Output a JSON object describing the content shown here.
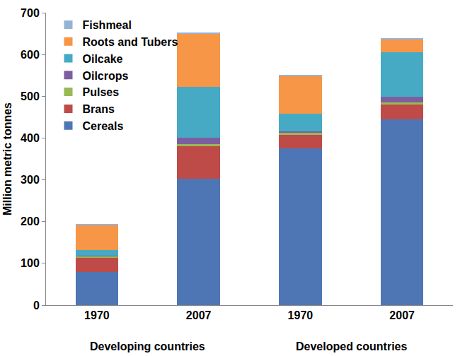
{
  "chart_data": {
    "type": "bar",
    "stacked": true,
    "y_label": "Million metric tonnes",
    "categories": [
      "1970",
      "2007",
      "1970",
      "2007"
    ],
    "annotations": [
      "Developing countries",
      "Developed countries"
    ],
    "ylim": [
      0,
      700
    ],
    "yticks": [
      0,
      100,
      200,
      300,
      400,
      500,
      600,
      700
    ],
    "grid": false,
    "legend": "top left",
    "series": [
      {
        "name": "Cereals",
        "color": "#4f76b4",
        "values": [
          79,
          302,
          375,
          445
        ]
      },
      {
        "name": "Brans",
        "color": "#be4b48",
        "values": [
          35,
          78,
          33,
          36
        ]
      },
      {
        "name": "Pulses",
        "color": "#98b954",
        "values": [
          3,
          6,
          5,
          5
        ]
      },
      {
        "name": "Oilcrops",
        "color": "#7d5fa0",
        "values": [
          2,
          14,
          3,
          13
        ]
      },
      {
        "name": "Oilcake",
        "color": "#46aac5",
        "values": [
          13,
          123,
          42,
          107
        ]
      },
      {
        "name": "Roots and Tubers",
        "color": "#f79646",
        "values": [
          60,
          127,
          90,
          30
        ]
      },
      {
        "name": "Fishmeal",
        "color": "#95b3d7",
        "values": [
          1,
          2,
          2,
          2
        ]
      }
    ]
  }
}
